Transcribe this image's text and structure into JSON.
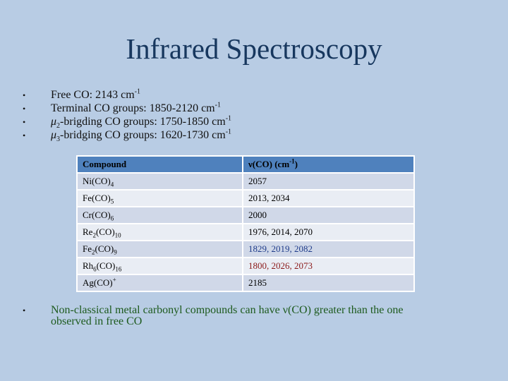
{
  "title": "Infrared Spectroscopy",
  "bullets": [
    {
      "pre": "",
      "mu": "",
      "musub": "",
      "text": "Free CO: 2143 cm",
      "sup": "-1"
    },
    {
      "pre": "",
      "mu": "",
      "musub": "",
      "text": "Terminal CO groups: 1850-2120 cm",
      "sup": "-1"
    },
    {
      "pre": "",
      "mu": "μ",
      "musub": "2",
      "text": "-brigding CO groups: 1750-1850 cm",
      "sup": "-1"
    },
    {
      "pre": "",
      "mu": "μ",
      "musub": "3",
      "text": "-bridging CO groups: 1620-1730 cm",
      "sup": "-1"
    }
  ],
  "table": {
    "header": {
      "compound": "Compound",
      "nu": "ν(CO) (cm",
      "nu_sup": "-1",
      "nu_close": ")"
    },
    "rows": [
      {
        "a": "Ni(CO)",
        "a_sub": "4",
        "b": "",
        "b_sub": "",
        "c": "",
        "value": "2057",
        "color": "#000000"
      },
      {
        "a": "Fe(CO)",
        "a_sub": "5",
        "b": "",
        "b_sub": "",
        "c": "",
        "value": "2013, 2034",
        "color": "#000000"
      },
      {
        "a": "Cr(CO)",
        "a_sub": "6",
        "b": "",
        "b_sub": "",
        "c": "",
        "value": "2000",
        "color": "#000000"
      },
      {
        "a": "Re",
        "a_sub": "2",
        "b": "(CO)",
        "b_sub": "10",
        "c": "",
        "value": "1976, 2014, 2070",
        "color": "#000000"
      },
      {
        "a": "Fe",
        "a_sub": "2",
        "b": "(CO)",
        "b_sub": "9",
        "c": "",
        "value": "1829, 2019, 2082",
        "color": "#1f3c8a"
      },
      {
        "a": "Rh",
        "a_sub": "6",
        "b": "(CO)",
        "b_sub": "16",
        "c": "",
        "value": "1800, 2026, 2073",
        "color": "#8b1a1a"
      },
      {
        "a": "Ag(CO)",
        "a_sub": "",
        "b": "",
        "b_sub": "",
        "c": "+",
        "value": "2185",
        "color": "#000000"
      }
    ]
  },
  "footer_bullet": {
    "text1": "Non-classical metal carbonyl compounds can have ",
    "nu": "ν",
    "text2": "(CO) greater than the one",
    "line2": "observed in free CO"
  },
  "colors": {
    "background": "#b8cce4",
    "title": "#17375e",
    "header": "#4f81bd",
    "footer_text": "#1d5a1d"
  }
}
